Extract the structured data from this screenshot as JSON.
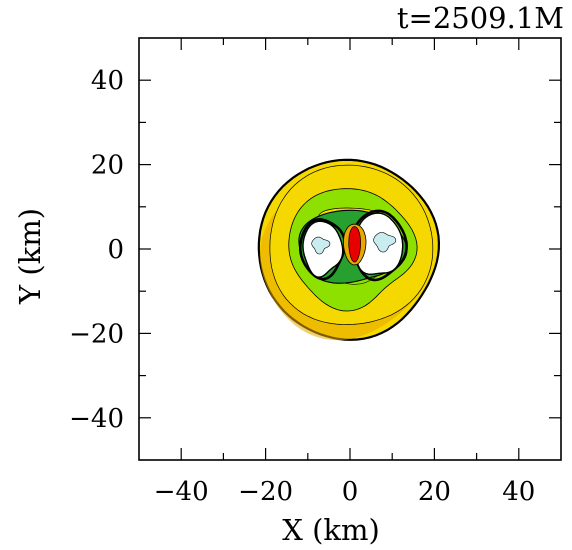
{
  "chart_data": {
    "type": "contour",
    "title": "t=2509.1M",
    "xlabel": "X (km)",
    "ylabel": "Y (km)",
    "xlim": [
      -50,
      50
    ],
    "ylim": [
      -50,
      50
    ],
    "x_ticks": [
      -40,
      -20,
      0,
      20,
      40
    ],
    "y_ticks": [
      -40,
      -20,
      0,
      20,
      40
    ],
    "x_tick_labels": [
      "−40",
      "−20",
      "0",
      "20",
      "40"
    ],
    "y_tick_labels": [
      "−40",
      "−20",
      "0",
      "20",
      "40"
    ],
    "minor_tick_step": 10,
    "grid": false,
    "colors": {
      "outer": "#f5d800",
      "outer_dark": "#e8a800",
      "middle": "#8ee000",
      "inner": "#28a030",
      "core": "#e80000",
      "cavity": "#ffffff",
      "cavity_spots": "#c8ecf0",
      "contour_line": "#000000"
    },
    "regions": [
      {
        "label": "outer-disk",
        "cx": -0.5,
        "cy": 0,
        "r": 21.2
      },
      {
        "label": "middle-ring",
        "cx": 0,
        "cy": 0.5,
        "r": 14
      },
      {
        "label": "left-cavity",
        "cx": -6.6,
        "cy": 0.2,
        "rx": 4.6,
        "ry": 6.4
      },
      {
        "label": "right-cavity",
        "cx": 6.8,
        "cy": 1.0,
        "rx": 5.6,
        "ry": 7.4
      },
      {
        "label": "central-core",
        "cx": 1.1,
        "cy": 1.2,
        "rx": 1.4,
        "ry": 4.2
      }
    ]
  }
}
